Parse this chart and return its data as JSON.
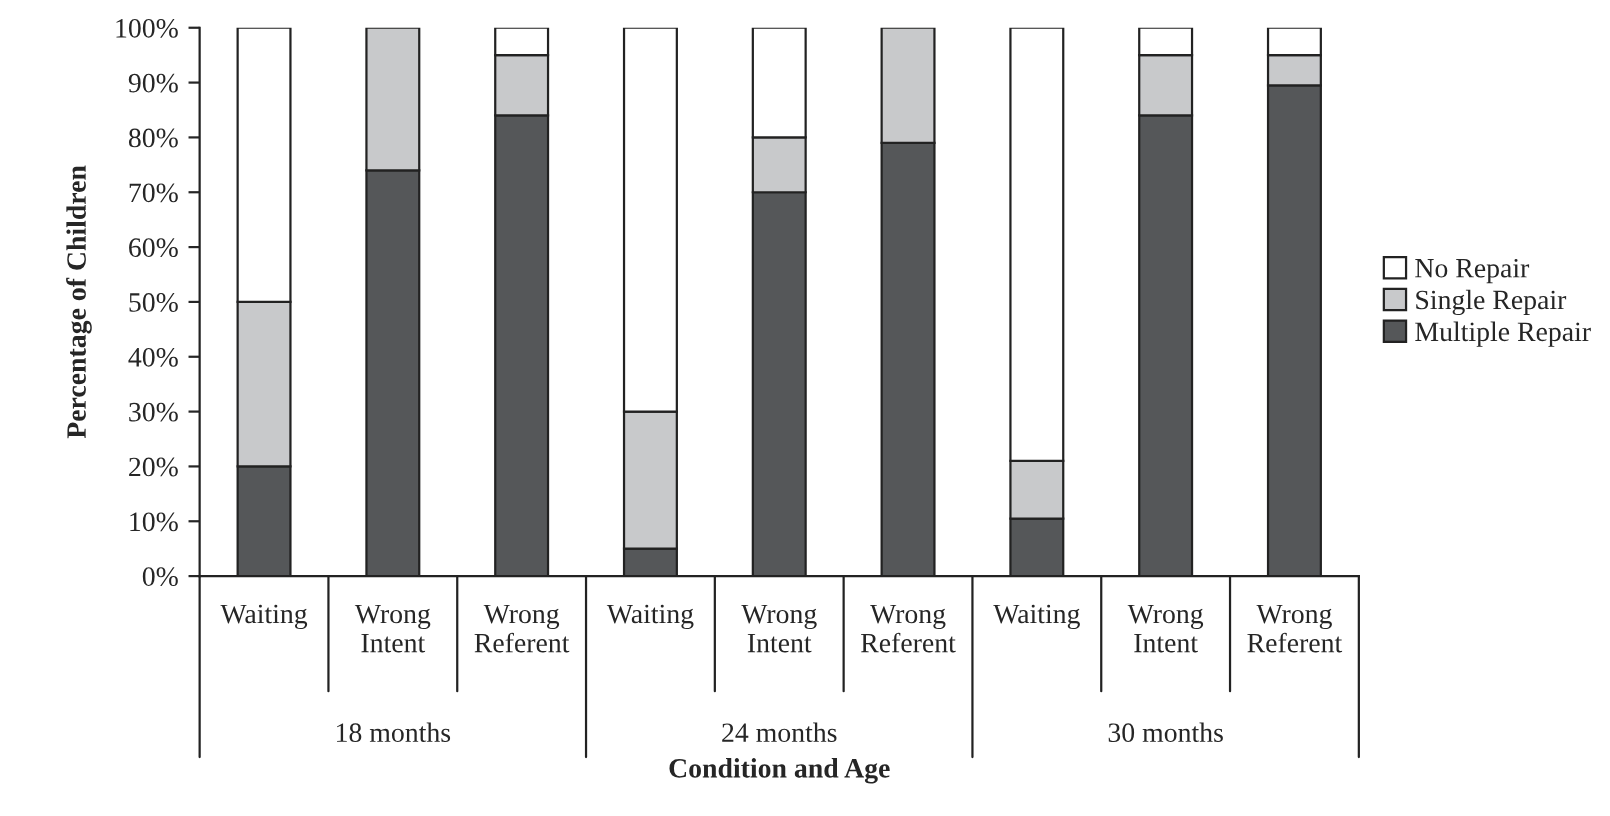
{
  "chart_data": {
    "type": "bar",
    "stacked": true,
    "xlabel": "Condition and Age",
    "ylabel": "Percentage of Children",
    "categories": [
      "Waiting",
      "Wrong\nIntent",
      "Wrong\nReferent",
      "Waiting",
      "Wrong\nIntent",
      "Wrong\nReferent",
      "Waiting",
      "Wrong\nIntent",
      "Wrong\nReferent"
    ],
    "annotations": [
      "18 months",
      "24 months",
      "30 months"
    ],
    "series": [
      {
        "name": "Multiple Repair",
        "color": "#555759",
        "values": [
          20,
          74,
          84,
          5,
          70,
          79,
          10.5,
          84,
          89.5
        ]
      },
      {
        "name": "Single Repair",
        "color": "#c8c9cb",
        "values": [
          30,
          26,
          11,
          25,
          10,
          21,
          10.5,
          11,
          5.5
        ]
      },
      {
        "name": "No Repair",
        "color": "#ffffff",
        "values": [
          50,
          0,
          5,
          70,
          20,
          0,
          79,
          5,
          5
        ]
      }
    ],
    "ylim": [
      0,
      100
    ],
    "yticks": [
      {
        "value": 0,
        "label": "0%"
      },
      {
        "value": 10,
        "label": "10%"
      },
      {
        "value": 20,
        "label": "20%"
      },
      {
        "value": 30,
        "label": "30%"
      },
      {
        "value": 40,
        "label": "40%"
      },
      {
        "value": 50,
        "label": "50%"
      },
      {
        "value": 60,
        "label": "60%"
      },
      {
        "value": 70,
        "label": "70%"
      },
      {
        "value": 80,
        "label": "80%"
      },
      {
        "value": 90,
        "label": "90%"
      },
      {
        "value": 100,
        "label": "100%"
      }
    ],
    "legend": "right",
    "grid": false
  }
}
